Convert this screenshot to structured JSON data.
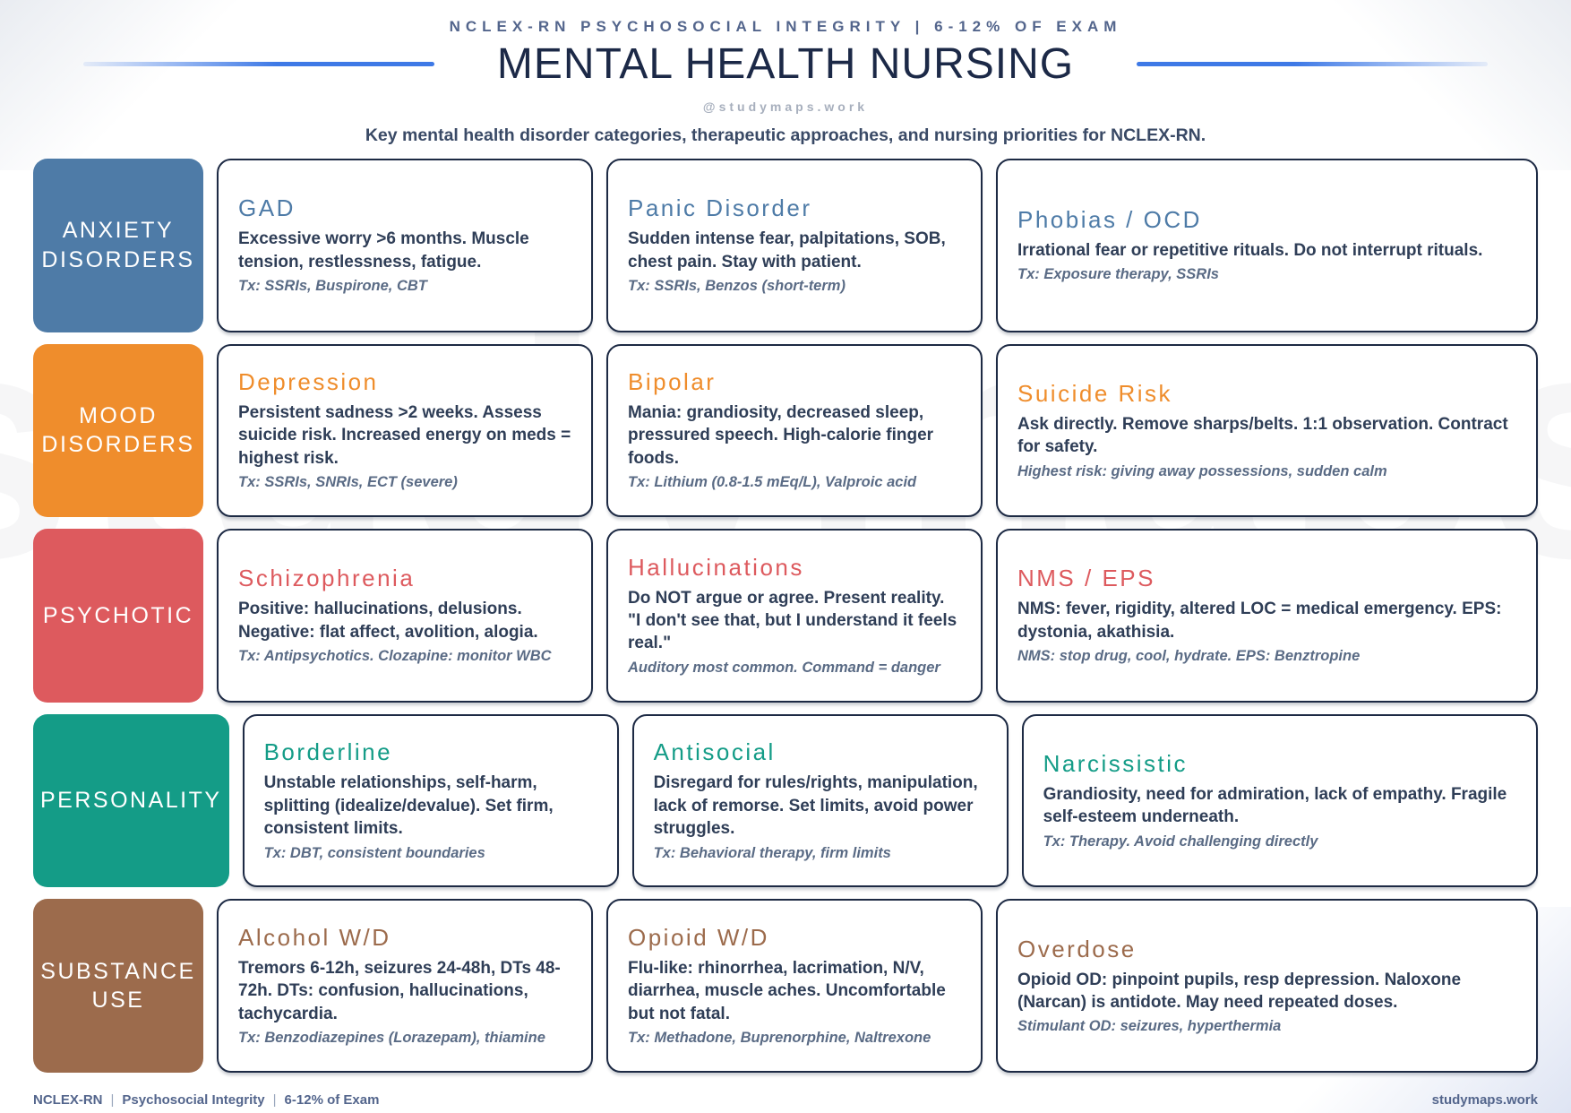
{
  "header": {
    "eyebrow": "NCLEX-RN PSYCHOSOCIAL INTEGRITY | 6-12% OF EXAM",
    "title": "MENTAL HEALTH NURSING",
    "handle": "@studymaps.work",
    "description": "Key mental health disorder categories, therapeutic approaches, and nursing priorities for NCLEX-RN."
  },
  "accent_color": "#3e79e6",
  "watermark": "studymaps",
  "rows": [
    {
      "category": "ANXIETY DISORDERS",
      "color": "#4e7ba7",
      "cards": [
        {
          "title": "GAD",
          "body": "Excessive worry >6 months. Muscle tension, restlessness, fatigue.",
          "tx": "Tx: SSRIs, Buspirone, CBT"
        },
        {
          "title": "Panic Disorder",
          "body": "Sudden intense fear, palpitations, SOB, chest pain. Stay with patient.",
          "tx": "Tx: SSRIs, Benzos (short-term)"
        },
        {
          "title": "Phobias / OCD",
          "body": "Irrational fear or repetitive rituals. Do not interrupt rituals.",
          "tx": "Tx: Exposure therapy, SSRIs"
        }
      ]
    },
    {
      "category": "MOOD DISORDERS",
      "color": "#ef8d2c",
      "cards": [
        {
          "title": "Depression",
          "body": "Persistent sadness >2 weeks. Assess suicide risk. Increased energy on meds = highest risk.",
          "tx": "Tx: SSRIs, SNRIs, ECT (severe)"
        },
        {
          "title": "Bipolar",
          "body": "Mania: grandiosity, decreased sleep, pressured speech. High-calorie finger foods.",
          "tx": "Tx: Lithium (0.8-1.5 mEq/L), Valproic acid"
        },
        {
          "title": "Suicide Risk",
          "body": "Ask directly. Remove sharps/belts. 1:1 observation. Contract for safety.",
          "tx": "Highest risk: giving away possessions, sudden calm"
        }
      ]
    },
    {
      "category": "PSYCHOTIC",
      "color": "#dd5a5e",
      "cards": [
        {
          "title": "Schizophrenia",
          "body": "Positive: hallucinations, delusions. Negative: flat affect, avolition, alogia.",
          "tx": "Tx: Antipsychotics. Clozapine: monitor WBC"
        },
        {
          "title": "Hallucinations",
          "body": "Do NOT argue or agree. Present reality. \"I don't see that, but I understand it feels real.\"",
          "tx": "Auditory most common. Command = danger"
        },
        {
          "title": "NMS / EPS",
          "body": "NMS: fever, rigidity, altered LOC = medical emergency. EPS: dystonia, akathisia.",
          "tx": "NMS: stop drug, cool, hydrate. EPS: Benztropine"
        }
      ]
    },
    {
      "category": "PERSONALITY",
      "color": "#149c87",
      "cards": [
        {
          "title": "Borderline",
          "body": "Unstable relationships, self-harm, splitting (idealize/devalue). Set firm, consistent limits.",
          "tx": "Tx: DBT, consistent boundaries"
        },
        {
          "title": "Antisocial",
          "body": "Disregard for rules/rights, manipulation, lack of remorse. Set limits, avoid power struggles.",
          "tx": "Tx: Behavioral therapy, firm limits"
        },
        {
          "title": "Narcissistic",
          "body": "Grandiosity, need for admiration, lack of empathy. Fragile self-esteem underneath.",
          "tx": "Tx: Therapy. Avoid challenging directly"
        }
      ]
    },
    {
      "category": "SUBSTANCE USE",
      "color": "#9c6b4c",
      "cards": [
        {
          "title": "Alcohol W/D",
          "body": "Tremors 6-12h, seizures 24-48h, DTs 48-72h. DTs: confusion, hallucinations, tachycardia.",
          "tx": "Tx: Benzodiazepines (Lorazepam), thiamine"
        },
        {
          "title": "Opioid W/D",
          "body": "Flu-like: rhinorrhea, lacrimation, N/V, diarrhea, muscle aches. Uncomfortable but not fatal.",
          "tx": "Tx: Methadone, Buprenorphine, Naltrexone"
        },
        {
          "title": "Overdose",
          "body": "Opioid OD: pinpoint pupils, resp depression. Naloxone (Narcan) is antidote. May need repeated doses.",
          "tx": "Stimulant OD: seizures, hyperthermia"
        }
      ]
    }
  ],
  "footer": {
    "left_parts": [
      "NCLEX-RN",
      "Psychosocial Integrity",
      "6-12% of Exam"
    ],
    "divider": "|",
    "right": "studymaps.work"
  }
}
